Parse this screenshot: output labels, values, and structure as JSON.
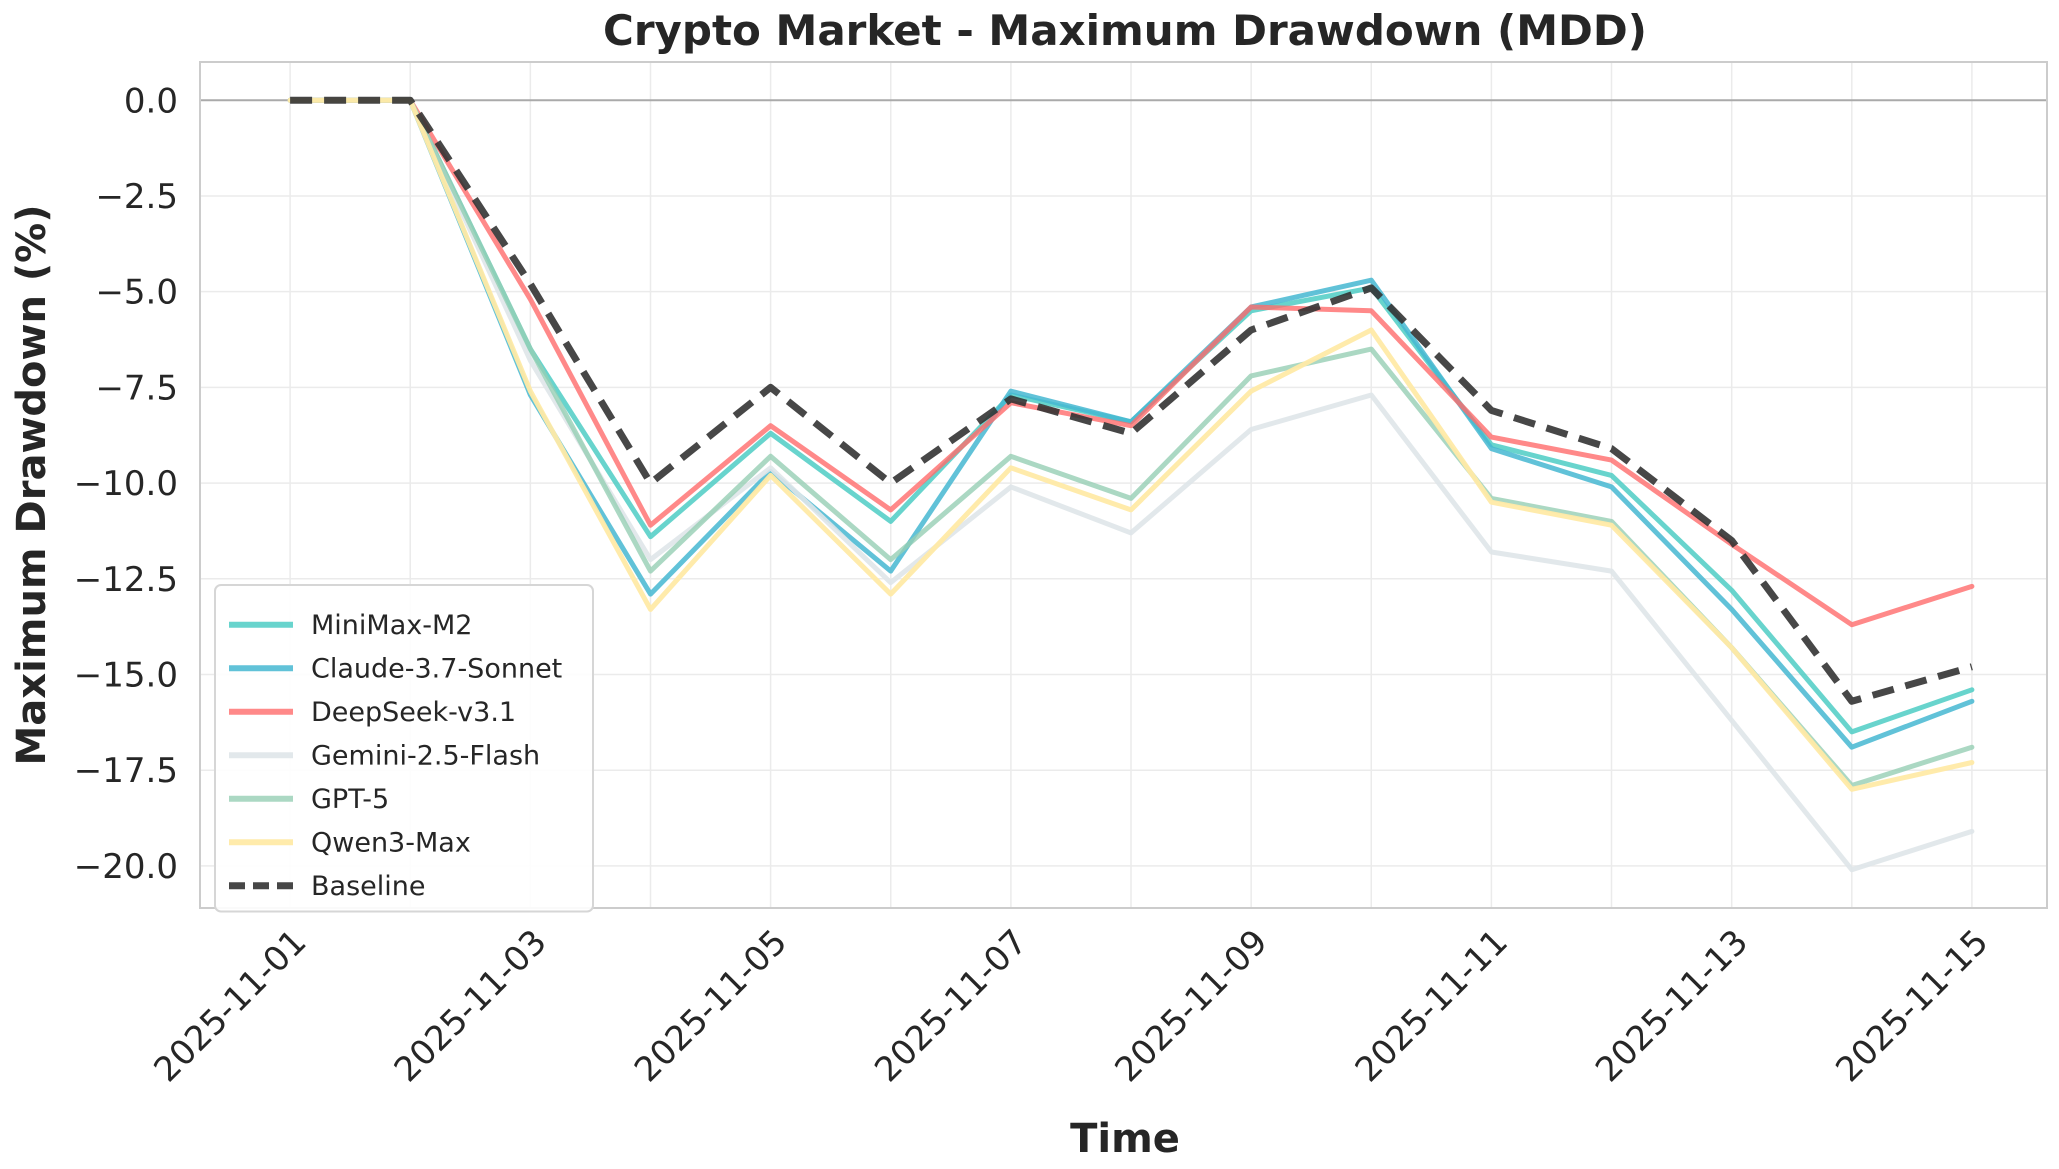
{
  "chart_data": {
    "type": "line",
    "title": "Crypto Market - Maximum Drawdown (MDD)",
    "xlabel": "Time",
    "ylabel": "Maximum Drawdown (%)",
    "x": [
      "2025-11-01",
      "2025-11-02",
      "2025-11-03",
      "2025-11-04",
      "2025-11-05",
      "2025-11-06",
      "2025-11-07",
      "2025-11-08",
      "2025-11-09",
      "2025-11-10",
      "2025-11-11",
      "2025-11-12",
      "2025-11-13",
      "2025-11-14",
      "2025-11-15"
    ],
    "x_ticks": [
      "2025-11-01",
      "2025-11-03",
      "2025-11-05",
      "2025-11-07",
      "2025-11-09",
      "2025-11-11",
      "2025-11-13",
      "2025-11-15"
    ],
    "y_ticks": [
      "0.0",
      "−2.5",
      "−5.0",
      "−7.5",
      "−10.0",
      "−12.5",
      "−15.0",
      "−17.5",
      "−20.0"
    ],
    "y_tick_values": [
      0,
      -2.5,
      -5,
      -7.5,
      -10,
      -12.5,
      -15,
      -17.5,
      -20
    ],
    "xlim": [
      "2025-10-31T06:00",
      "2025-11-15T15:00"
    ],
    "ylim": [
      -21.1,
      1.0
    ],
    "grid": true,
    "legend_position": "lower-left",
    "series": [
      {
        "name": "MiniMax-M2",
        "color": "#4ecdc4",
        "dash": false,
        "opacity": 0.85,
        "values": [
          0,
          0,
          -6.5,
          -11.4,
          -8.7,
          -11.0,
          -7.7,
          -8.4,
          -5.5,
          -4.9,
          -9.0,
          -9.8,
          -12.8,
          -16.5,
          -15.4
        ]
      },
      {
        "name": "Claude-3.7-Sonnet",
        "color": "#45b7d1",
        "dash": false,
        "opacity": 0.85,
        "values": [
          0,
          0,
          -7.7,
          -12.9,
          -9.7,
          -12.3,
          -7.6,
          -8.4,
          -5.4,
          -4.7,
          -9.1,
          -10.1,
          -13.3,
          -16.9,
          -15.7
        ]
      },
      {
        "name": "DeepSeek-v3.1",
        "color": "#ff6b6b",
        "dash": false,
        "opacity": 0.8,
        "values": [
          0,
          0,
          -5.2,
          -11.1,
          -8.5,
          -10.7,
          -7.9,
          -8.5,
          -5.4,
          -5.5,
          -8.8,
          -9.4,
          -11.6,
          -13.7,
          -12.7
        ]
      },
      {
        "name": "Gemini-2.5-Flash",
        "color": "#dfe6e9",
        "dash": false,
        "opacity": 0.9,
        "values": [
          0,
          0,
          -6.8,
          -12.0,
          -9.6,
          -12.6,
          -10.1,
          -11.3,
          -8.6,
          -7.7,
          -11.8,
          -12.3,
          -16.2,
          -20.1,
          -19.1
        ]
      },
      {
        "name": "GPT-5",
        "color": "#96ceb4",
        "dash": false,
        "opacity": 0.8,
        "values": [
          0,
          0,
          -6.5,
          -12.3,
          -9.3,
          -12.0,
          -9.3,
          -10.4,
          -7.2,
          -6.5,
          -10.4,
          -11.0,
          -14.3,
          -17.9,
          -16.9
        ]
      },
      {
        "name": "Qwen3-Max",
        "color": "#ffeaa7",
        "dash": false,
        "opacity": 0.95,
        "values": [
          0,
          0,
          -7.6,
          -13.3,
          -9.8,
          -12.9,
          -9.6,
          -10.7,
          -7.6,
          -6.0,
          -10.5,
          -11.1,
          -14.3,
          -18.0,
          -17.3
        ]
      },
      {
        "name": "Baseline",
        "color": "#333333",
        "dash": true,
        "opacity": 0.9,
        "values": [
          0,
          0,
          -4.8,
          -10.0,
          -7.5,
          -10.0,
          -7.8,
          -8.7,
          -6.0,
          -4.9,
          -8.1,
          -9.1,
          -11.5,
          -15.7,
          -14.8
        ]
      }
    ]
  }
}
